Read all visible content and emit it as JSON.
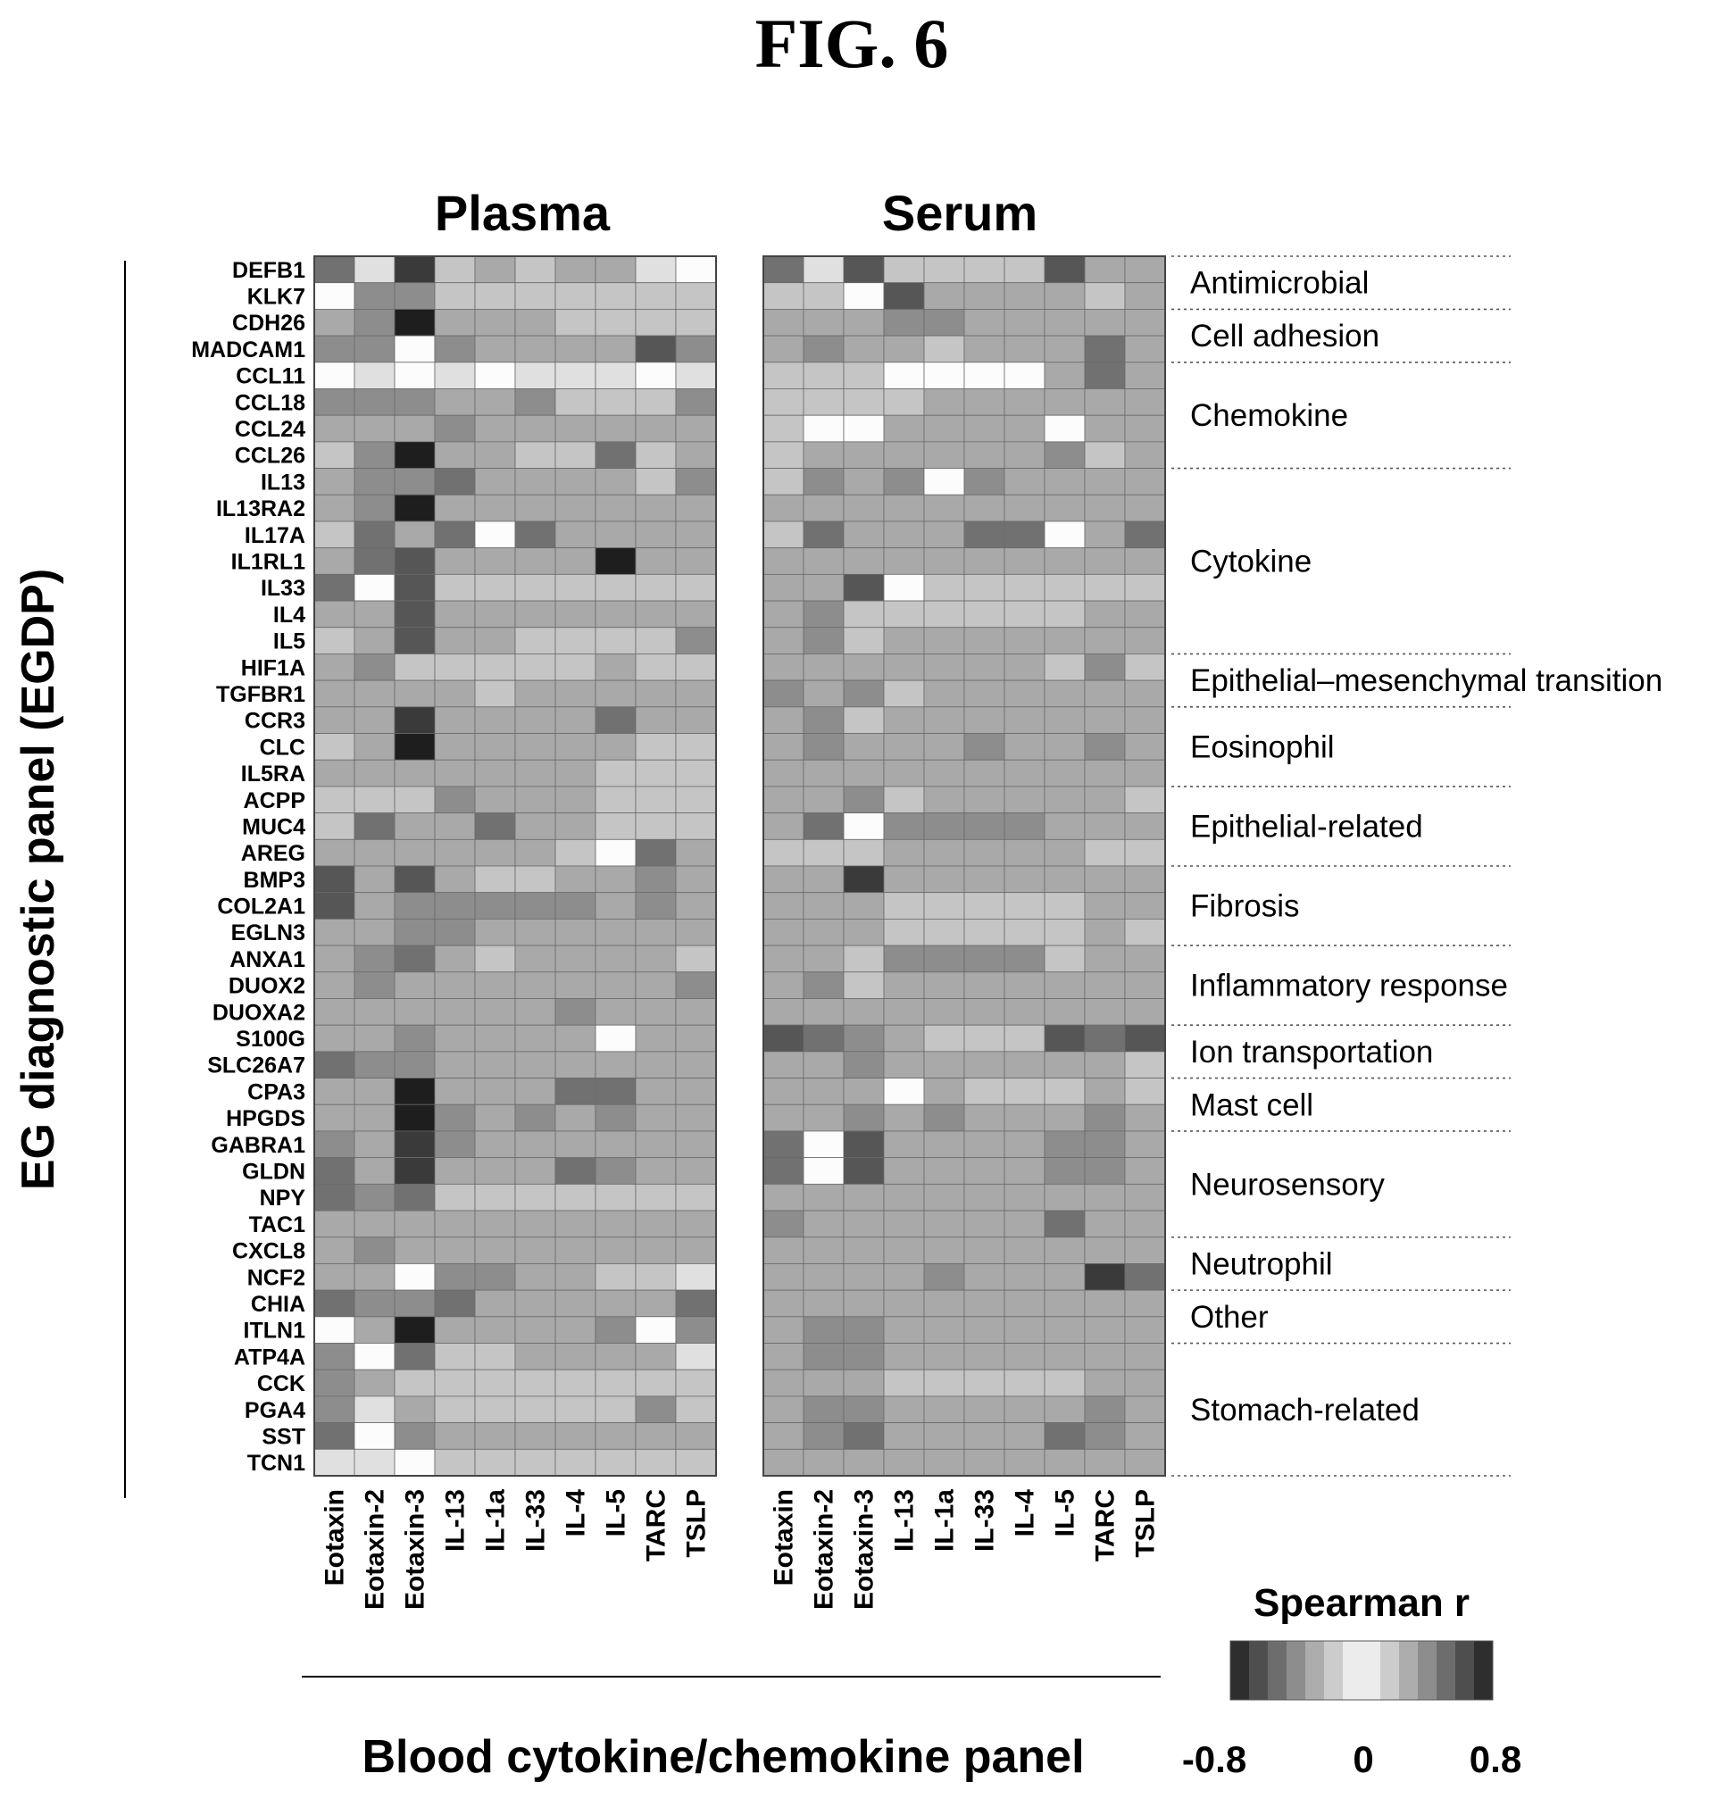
{
  "figure_label": "FIG. 6",
  "chart_data": {
    "type": "heatmap",
    "panels": [
      "Plasma",
      "Serum"
    ],
    "columns": [
      "Eotaxin",
      "Eotaxin-2",
      "Eotaxin-3",
      "IL-13",
      "IL-1a",
      "IL-33",
      "IL-4",
      "IL-5",
      "TARC",
      "TSLP"
    ],
    "rows": [
      "DEFB1",
      "KLK7",
      "CDH26",
      "MADCAM1",
      "CCL11",
      "CCL18",
      "CCL24",
      "CCL26",
      "IL13",
      "IL13RA2",
      "IL17A",
      "IL1RL1",
      "IL33",
      "IL4",
      "IL5",
      "HIF1A",
      "TGFBR1",
      "CCR3",
      "CLC",
      "IL5RA",
      "ACPP",
      "MUC4",
      "AREG",
      "BMP3",
      "COL2A1",
      "EGLN3",
      "ANXA1",
      "DUOX2",
      "DUOXA2",
      "S100G",
      "SLC26A7",
      "CPA3",
      "HPGDS",
      "GABRA1",
      "GLDN",
      "NPY",
      "TAC1",
      "CXCL8",
      "NCF2",
      "CHIA",
      "ITLN1",
      "ATP4A",
      "CCK",
      "PGA4",
      "SST",
      "TCN1"
    ],
    "groups": [
      {
        "label": "Antimicrobial",
        "start": 0,
        "end": 1
      },
      {
        "label": "Cell adhesion",
        "start": 2,
        "end": 3
      },
      {
        "label": "Chemokine",
        "start": 4,
        "end": 7
      },
      {
        "label": "Cytokine",
        "start": 8,
        "end": 14
      },
      {
        "label": "Epithelial–mesenchymal transition",
        "start": 15,
        "end": 16
      },
      {
        "label": "Eosinophil",
        "start": 17,
        "end": 19
      },
      {
        "label": "Epithelial-related",
        "start": 20,
        "end": 22
      },
      {
        "label": "Fibrosis",
        "start": 23,
        "end": 25
      },
      {
        "label": "Inflammatory response",
        "start": 26,
        "end": 28
      },
      {
        "label": "Ion transportation",
        "start": 29,
        "end": 30
      },
      {
        "label": "Mast cell",
        "start": 31,
        "end": 32
      },
      {
        "label": "Neurosensory",
        "start": 33,
        "end": 36
      },
      {
        "label": "Neutrophil",
        "start": 37,
        "end": 38
      },
      {
        "label": "Other",
        "start": 39,
        "end": 40
      },
      {
        "label": "Stomach-related",
        "start": 41,
        "end": 45
      }
    ],
    "value_range": [
      -0.8,
      0.8
    ],
    "plasma": [
      [
        -0.5,
        0.1,
        -0.7,
        0.2,
        -0.3,
        0.2,
        -0.3,
        -0.3,
        0.1,
        0.0
      ],
      [
        0.0,
        -0.4,
        -0.4,
        -0.2,
        -0.2,
        -0.2,
        -0.2,
        -0.2,
        -0.2,
        -0.2
      ],
      [
        -0.3,
        -0.4,
        -0.8,
        -0.3,
        -0.3,
        -0.3,
        -0.2,
        -0.2,
        -0.2,
        -0.2
      ],
      [
        -0.4,
        -0.4,
        0.0,
        -0.4,
        -0.3,
        -0.3,
        -0.3,
        -0.3,
        -0.6,
        -0.4
      ],
      [
        0.0,
        0.1,
        0.0,
        0.1,
        0.0,
        0.1,
        0.1,
        0.1,
        0.0,
        0.1
      ],
      [
        -0.4,
        -0.4,
        -0.4,
        -0.3,
        -0.3,
        -0.4,
        -0.2,
        -0.2,
        -0.2,
        -0.4
      ],
      [
        -0.3,
        -0.3,
        -0.3,
        -0.4,
        -0.3,
        -0.3,
        -0.3,
        -0.3,
        -0.3,
        -0.3
      ],
      [
        -0.2,
        -0.4,
        -0.9,
        -0.3,
        -0.3,
        -0.2,
        -0.2,
        -0.5,
        -0.2,
        -0.3
      ],
      [
        -0.3,
        -0.4,
        -0.4,
        -0.5,
        -0.3,
        -0.3,
        -0.3,
        -0.3,
        -0.2,
        -0.4
      ],
      [
        -0.3,
        -0.4,
        -0.8,
        -0.3,
        -0.3,
        -0.3,
        -0.3,
        -0.3,
        -0.3,
        -0.3
      ],
      [
        -0.2,
        -0.5,
        -0.3,
        -0.5,
        0.0,
        -0.5,
        -0.3,
        -0.3,
        -0.3,
        -0.3
      ],
      [
        -0.3,
        -0.5,
        -0.6,
        -0.3,
        -0.3,
        -0.3,
        -0.3,
        -0.8,
        -0.3,
        -0.3
      ],
      [
        -0.5,
        0.0,
        -0.6,
        -0.2,
        -0.2,
        -0.2,
        -0.2,
        -0.2,
        -0.2,
        -0.2
      ],
      [
        -0.3,
        -0.3,
        -0.6,
        -0.3,
        -0.3,
        -0.3,
        -0.3,
        -0.3,
        -0.3,
        -0.3
      ],
      [
        -0.2,
        -0.3,
        -0.6,
        -0.3,
        -0.3,
        -0.2,
        -0.2,
        -0.2,
        -0.2,
        -0.4
      ],
      [
        -0.3,
        -0.4,
        -0.2,
        -0.2,
        -0.2,
        -0.2,
        -0.2,
        -0.3,
        -0.2,
        -0.2
      ],
      [
        -0.3,
        -0.3,
        -0.3,
        -0.3,
        -0.2,
        -0.3,
        -0.3,
        -0.3,
        -0.3,
        -0.3
      ],
      [
        -0.3,
        -0.3,
        -0.7,
        -0.3,
        -0.3,
        -0.3,
        -0.3,
        -0.5,
        -0.3,
        -0.3
      ],
      [
        -0.2,
        -0.3,
        -0.9,
        -0.3,
        -0.3,
        -0.3,
        -0.3,
        -0.3,
        -0.2,
        -0.2
      ],
      [
        -0.3,
        -0.3,
        -0.3,
        -0.3,
        -0.3,
        -0.3,
        -0.3,
        -0.2,
        -0.2,
        -0.2
      ],
      [
        -0.2,
        -0.2,
        -0.2,
        -0.4,
        -0.3,
        -0.3,
        -0.3,
        -0.2,
        -0.2,
        -0.2
      ],
      [
        -0.2,
        -0.5,
        -0.3,
        -0.3,
        -0.5,
        -0.3,
        -0.3,
        -0.2,
        -0.2,
        -0.2
      ],
      [
        -0.3,
        -0.3,
        -0.3,
        -0.3,
        -0.3,
        -0.3,
        -0.2,
        0.0,
        -0.5,
        -0.3
      ],
      [
        -0.6,
        -0.3,
        -0.6,
        -0.3,
        -0.2,
        -0.2,
        -0.3,
        -0.3,
        -0.4,
        -0.3
      ],
      [
        -0.6,
        -0.3,
        -0.4,
        -0.4,
        -0.4,
        -0.4,
        -0.4,
        -0.3,
        -0.4,
        -0.3
      ],
      [
        -0.3,
        -0.3,
        -0.4,
        -0.4,
        -0.3,
        -0.3,
        -0.3,
        -0.3,
        -0.3,
        -0.3
      ],
      [
        -0.3,
        -0.4,
        -0.5,
        -0.3,
        -0.2,
        -0.3,
        -0.3,
        -0.3,
        -0.3,
        -0.2
      ],
      [
        -0.3,
        -0.4,
        -0.3,
        -0.3,
        -0.3,
        -0.3,
        -0.3,
        -0.3,
        -0.3,
        -0.4
      ],
      [
        -0.3,
        -0.3,
        -0.3,
        -0.3,
        -0.3,
        -0.3,
        -0.4,
        -0.3,
        -0.3,
        -0.3
      ],
      [
        -0.3,
        -0.3,
        -0.4,
        -0.3,
        -0.3,
        -0.3,
        -0.3,
        0.0,
        -0.3,
        -0.3
      ],
      [
        -0.5,
        -0.4,
        -0.4,
        -0.3,
        -0.3,
        -0.3,
        -0.3,
        -0.3,
        -0.3,
        -0.3
      ],
      [
        -0.3,
        -0.3,
        -0.9,
        -0.3,
        -0.3,
        -0.3,
        -0.5,
        -0.5,
        -0.3,
        -0.3
      ],
      [
        -0.3,
        -0.3,
        -0.8,
        -0.4,
        -0.3,
        -0.4,
        -0.3,
        -0.4,
        -0.3,
        -0.3
      ],
      [
        -0.4,
        -0.3,
        -0.7,
        -0.4,
        -0.3,
        -0.3,
        -0.3,
        -0.3,
        -0.3,
        -0.3
      ],
      [
        -0.5,
        -0.3,
        -0.7,
        -0.3,
        -0.3,
        -0.3,
        -0.5,
        -0.4,
        -0.3,
        -0.3
      ],
      [
        -0.5,
        -0.4,
        -0.5,
        -0.2,
        -0.2,
        -0.2,
        -0.2,
        -0.2,
        -0.2,
        -0.2
      ],
      [
        -0.3,
        -0.3,
        -0.3,
        -0.3,
        -0.3,
        -0.3,
        -0.3,
        -0.3,
        -0.3,
        -0.3
      ],
      [
        -0.3,
        -0.4,
        -0.3,
        -0.3,
        -0.3,
        -0.3,
        -0.3,
        -0.3,
        -0.3,
        -0.3
      ],
      [
        -0.3,
        -0.3,
        0.0,
        -0.4,
        -0.4,
        -0.3,
        -0.3,
        -0.2,
        -0.2,
        0.1
      ],
      [
        -0.5,
        -0.4,
        -0.4,
        -0.5,
        -0.3,
        -0.3,
        -0.3,
        -0.3,
        -0.3,
        -0.5
      ],
      [
        0.0,
        -0.3,
        -0.9,
        -0.3,
        -0.3,
        -0.3,
        -0.3,
        -0.4,
        0.0,
        -0.4
      ],
      [
        -0.4,
        0.0,
        -0.5,
        -0.2,
        -0.2,
        -0.3,
        -0.3,
        -0.3,
        -0.3,
        0.1
      ],
      [
        -0.4,
        -0.3,
        -0.2,
        -0.2,
        -0.2,
        -0.2,
        -0.2,
        -0.2,
        -0.2,
        -0.2
      ],
      [
        -0.4,
        0.1,
        -0.3,
        -0.2,
        -0.2,
        -0.2,
        -0.2,
        -0.2,
        -0.4,
        -0.2
      ],
      [
        -0.5,
        0.0,
        -0.4,
        -0.3,
        -0.3,
        -0.3,
        -0.3,
        -0.3,
        -0.3,
        -0.3
      ],
      [
        0.1,
        0.1,
        0.0,
        -0.2,
        -0.2,
        -0.2,
        -0.2,
        -0.2,
        -0.2,
        -0.2
      ]
    ],
    "serum": [
      [
        -0.5,
        0.1,
        -0.6,
        -0.2,
        -0.2,
        -0.2,
        -0.2,
        -0.6,
        -0.3,
        -0.3
      ],
      [
        -0.2,
        -0.2,
        0.0,
        -0.6,
        -0.3,
        -0.3,
        -0.3,
        -0.3,
        -0.2,
        -0.3
      ],
      [
        -0.3,
        -0.3,
        -0.3,
        -0.4,
        -0.4,
        -0.3,
        -0.3,
        -0.3,
        -0.3,
        -0.3
      ],
      [
        -0.3,
        -0.4,
        -0.3,
        -0.3,
        -0.2,
        -0.3,
        -0.3,
        -0.3,
        -0.5,
        -0.3
      ],
      [
        -0.2,
        -0.2,
        -0.2,
        0.0,
        0.0,
        0.0,
        0.0,
        -0.3,
        -0.5,
        -0.3
      ],
      [
        -0.2,
        -0.2,
        -0.2,
        -0.2,
        -0.3,
        -0.3,
        -0.3,
        -0.3,
        -0.3,
        -0.3
      ],
      [
        -0.2,
        0.0,
        0.0,
        -0.3,
        -0.3,
        -0.3,
        -0.3,
        0.0,
        -0.3,
        -0.3
      ],
      [
        -0.2,
        -0.3,
        -0.3,
        -0.3,
        -0.3,
        -0.3,
        -0.3,
        -0.4,
        -0.2,
        -0.3
      ],
      [
        -0.2,
        -0.4,
        -0.3,
        -0.4,
        0.0,
        -0.4,
        -0.3,
        -0.3,
        -0.3,
        -0.3
      ],
      [
        -0.3,
        -0.3,
        -0.3,
        -0.3,
        -0.3,
        -0.3,
        -0.3,
        -0.3,
        -0.3,
        -0.3
      ],
      [
        -0.2,
        -0.5,
        -0.3,
        -0.3,
        -0.3,
        -0.5,
        -0.5,
        0.0,
        -0.3,
        -0.5
      ],
      [
        -0.3,
        -0.3,
        -0.3,
        -0.3,
        -0.3,
        -0.3,
        -0.3,
        -0.3,
        -0.3,
        -0.3
      ],
      [
        -0.3,
        -0.3,
        -0.6,
        0.0,
        -0.2,
        -0.2,
        -0.2,
        -0.2,
        -0.2,
        -0.2
      ],
      [
        -0.3,
        -0.4,
        -0.2,
        -0.2,
        -0.2,
        -0.2,
        -0.2,
        -0.2,
        -0.3,
        -0.3
      ],
      [
        -0.3,
        -0.4,
        -0.2,
        -0.3,
        -0.3,
        -0.3,
        -0.3,
        -0.3,
        -0.3,
        -0.3
      ],
      [
        -0.3,
        -0.3,
        -0.3,
        -0.3,
        -0.3,
        -0.3,
        -0.3,
        -0.2,
        -0.4,
        -0.2
      ],
      [
        -0.4,
        -0.3,
        -0.4,
        -0.2,
        -0.3,
        -0.3,
        -0.3,
        -0.3,
        -0.3,
        -0.3
      ],
      [
        -0.3,
        -0.4,
        -0.2,
        -0.3,
        -0.3,
        -0.3,
        -0.3,
        -0.3,
        -0.3,
        -0.3
      ],
      [
        -0.3,
        -0.4,
        -0.3,
        -0.3,
        -0.3,
        -0.4,
        -0.3,
        -0.3,
        -0.4,
        -0.3
      ],
      [
        -0.3,
        -0.3,
        -0.3,
        -0.3,
        -0.3,
        -0.3,
        -0.3,
        -0.3,
        -0.3,
        -0.3
      ],
      [
        -0.3,
        -0.3,
        -0.4,
        -0.2,
        -0.3,
        -0.3,
        -0.3,
        -0.3,
        -0.3,
        -0.2
      ],
      [
        -0.3,
        -0.5,
        0.0,
        -0.4,
        -0.4,
        -0.4,
        -0.4,
        -0.3,
        -0.3,
        -0.3
      ],
      [
        -0.2,
        -0.2,
        -0.2,
        -0.3,
        -0.3,
        -0.3,
        -0.3,
        -0.3,
        -0.2,
        -0.2
      ],
      [
        -0.3,
        -0.3,
        -0.7,
        -0.3,
        -0.3,
        -0.3,
        -0.3,
        -0.3,
        -0.3,
        -0.3
      ],
      [
        -0.3,
        -0.3,
        -0.3,
        -0.2,
        -0.2,
        -0.2,
        -0.2,
        -0.2,
        -0.3,
        -0.3
      ],
      [
        -0.3,
        -0.3,
        -0.3,
        -0.2,
        -0.2,
        -0.2,
        -0.2,
        -0.2,
        -0.3,
        -0.2
      ],
      [
        -0.3,
        -0.3,
        -0.2,
        -0.4,
        -0.4,
        -0.4,
        -0.4,
        -0.2,
        -0.3,
        -0.3
      ],
      [
        -0.3,
        -0.4,
        -0.2,
        -0.3,
        -0.3,
        -0.3,
        -0.3,
        -0.3,
        -0.3,
        -0.3
      ],
      [
        -0.3,
        -0.3,
        -0.3,
        -0.3,
        -0.3,
        -0.3,
        -0.3,
        -0.3,
        -0.3,
        -0.3
      ],
      [
        -0.6,
        -0.5,
        -0.4,
        -0.3,
        -0.2,
        -0.2,
        -0.2,
        -0.6,
        -0.5,
        -0.6
      ],
      [
        -0.3,
        -0.3,
        -0.4,
        -0.3,
        -0.3,
        -0.3,
        -0.3,
        -0.3,
        -0.3,
        -0.2
      ],
      [
        -0.3,
        -0.3,
        -0.3,
        0.0,
        -0.3,
        -0.2,
        -0.2,
        -0.2,
        -0.3,
        -0.2
      ],
      [
        -0.3,
        -0.3,
        -0.4,
        -0.3,
        -0.4,
        -0.3,
        -0.3,
        -0.3,
        -0.4,
        -0.3
      ],
      [
        -0.5,
        0.0,
        -0.6,
        -0.3,
        -0.3,
        -0.3,
        -0.3,
        -0.4,
        -0.4,
        -0.3
      ],
      [
        -0.5,
        0.0,
        -0.6,
        -0.3,
        -0.3,
        -0.3,
        -0.3,
        -0.4,
        -0.4,
        -0.3
      ],
      [
        -0.3,
        -0.3,
        -0.3,
        -0.3,
        -0.3,
        -0.3,
        -0.3,
        -0.3,
        -0.3,
        -0.3
      ],
      [
        -0.4,
        -0.3,
        -0.3,
        -0.3,
        -0.3,
        -0.3,
        -0.3,
        -0.5,
        -0.3,
        -0.3
      ],
      [
        -0.3,
        -0.3,
        -0.3,
        -0.3,
        -0.3,
        -0.3,
        -0.3,
        -0.3,
        -0.3,
        -0.3
      ],
      [
        -0.3,
        -0.3,
        -0.3,
        -0.3,
        -0.4,
        -0.3,
        -0.3,
        -0.3,
        -0.7,
        -0.5
      ],
      [
        -0.3,
        -0.3,
        -0.3,
        -0.3,
        -0.3,
        -0.3,
        -0.3,
        -0.3,
        -0.3,
        -0.3
      ],
      [
        -0.3,
        -0.4,
        -0.4,
        -0.3,
        -0.3,
        -0.3,
        -0.3,
        -0.3,
        -0.3,
        -0.3
      ],
      [
        -0.3,
        -0.4,
        -0.4,
        -0.3,
        -0.3,
        -0.3,
        -0.3,
        -0.3,
        -0.3,
        -0.3
      ],
      [
        -0.3,
        -0.3,
        -0.3,
        -0.2,
        -0.2,
        -0.2,
        -0.2,
        -0.2,
        -0.3,
        -0.3
      ],
      [
        -0.3,
        -0.4,
        -0.4,
        -0.3,
        -0.3,
        -0.3,
        -0.3,
        -0.3,
        -0.4,
        -0.3
      ],
      [
        -0.3,
        -0.4,
        -0.5,
        -0.3,
        -0.3,
        -0.3,
        -0.3,
        -0.5,
        -0.4,
        -0.3
      ],
      [
        -0.3,
        -0.3,
        -0.3,
        -0.3,
        -0.3,
        -0.3,
        -0.3,
        -0.3,
        -0.3,
        -0.3
      ]
    ],
    "xlabel": "Blood cytokine/chemokine panel",
    "ylabel": "EG diagnostic panel (EGDP)",
    "legend": {
      "title": "Spearman r",
      "ticks": [
        "-0.8",
        "0",
        "0.8"
      ]
    }
  }
}
